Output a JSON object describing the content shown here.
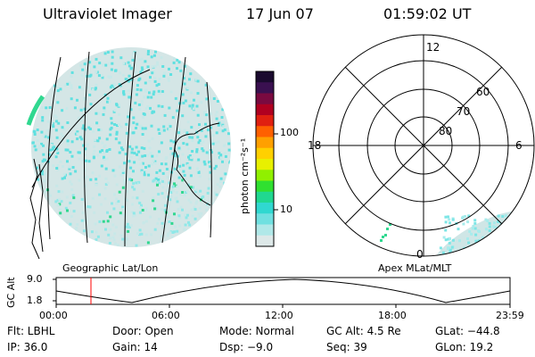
{
  "header": {
    "instrument": "Ultraviolet Imager",
    "date": "17 Jun 07",
    "time": "01:59:02 UT"
  },
  "colorbar": {
    "unit_label": "photon cm⁻²s⁻¹",
    "ticks": [
      "100",
      "10"
    ],
    "colors": [
      "#1a0a2e",
      "#3a1050",
      "#7a0a40",
      "#b00020",
      "#e02010",
      "#ff6000",
      "#ffa000",
      "#ffd000",
      "#e8f000",
      "#90f000",
      "#30e030",
      "#20d890",
      "#30d8d0",
      "#70e0e0",
      "#b0e8e8",
      "#dde8e8"
    ]
  },
  "left_panel": {
    "label": "Geographic Lat/Lon",
    "dot_colors": [
      "#5fe0e0",
      "#c8e8e8",
      "#30d890",
      "#8fe8e8"
    ]
  },
  "right_panel": {
    "label": "Apex MLat/MLT",
    "mlt_labels": [
      "12",
      "18",
      "6",
      "0"
    ],
    "lat_labels": [
      "60",
      "70",
      "80"
    ]
  },
  "altitude_plot": {
    "ylabel": "GC Alt",
    "yticks": [
      "9.0",
      "1.8"
    ],
    "xticks": [
      "00:00",
      "06:00",
      "12:00",
      "18:00",
      "23:59"
    ],
    "marker_color": "#ff0000"
  },
  "info": {
    "filter": "Flt: LBHL",
    "door": "Door: Open",
    "mode": "Mode: Normal",
    "gc_alt": "GC Alt: 4.5 Re",
    "glat": "GLat: −44.8",
    "ip": "IP: 36.0",
    "gain": "Gain: 14",
    "dsp": "Dsp:   −9.0",
    "seq": "Seq: 39",
    "glon": "GLon:  19.2"
  }
}
